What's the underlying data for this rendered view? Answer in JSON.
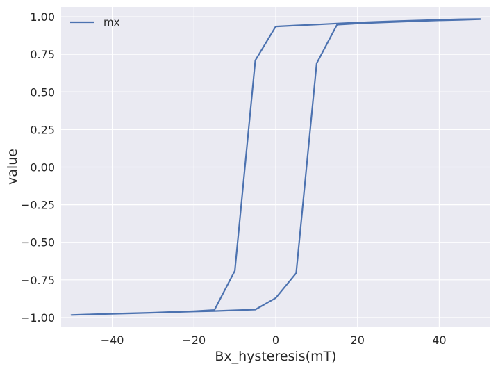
{
  "chart_data": {
    "type": "line",
    "xlabel": "Bx_hysteresis(mT)",
    "ylabel": "value",
    "xlim": [
      -52.5,
      52.5
    ],
    "ylim": [
      -1.065,
      1.065
    ],
    "x_ticks": [
      -40,
      -20,
      0,
      20,
      40
    ],
    "x_tick_labels": [
      "−40",
      "−20",
      "0",
      "20",
      "40"
    ],
    "y_ticks": [
      -1.0,
      -0.75,
      -0.5,
      -0.25,
      0.0,
      0.25,
      0.5,
      0.75,
      1.0
    ],
    "y_tick_labels": [
      "−1.00",
      "−0.75",
      "−0.50",
      "−0.25",
      "0.00",
      "0.25",
      "0.50",
      "0.75",
      "1.00"
    ],
    "grid": true,
    "legend_position": "top-left",
    "series": [
      {
        "name": "mx",
        "color": "#4c72b0",
        "x": [
          50,
          45,
          40,
          35,
          30,
          25,
          20,
          15,
          10,
          5,
          0,
          -5,
          -10,
          -15,
          -20,
          -25,
          -30,
          -35,
          -40,
          -45,
          -50,
          -45,
          -40,
          -35,
          -30,
          -25,
          -20,
          -15,
          -10,
          -5,
          0,
          5,
          10,
          15,
          20,
          25,
          30,
          35,
          40,
          45,
          50
        ],
        "y": [
          0.985,
          0.983,
          0.979,
          0.975,
          0.971,
          0.966,
          0.961,
          0.955,
          0.948,
          0.942,
          0.935,
          0.71,
          -0.69,
          -0.95,
          -0.958,
          -0.963,
          -0.968,
          -0.972,
          -0.976,
          -0.979,
          -0.983,
          -0.979,
          -0.975,
          -0.971,
          -0.968,
          -0.964,
          -0.96,
          -0.957,
          -0.952,
          -0.947,
          -0.87,
          -0.705,
          0.69,
          0.947,
          0.955,
          0.961,
          0.966,
          0.971,
          0.976,
          0.979,
          0.983
        ]
      }
    ]
  }
}
